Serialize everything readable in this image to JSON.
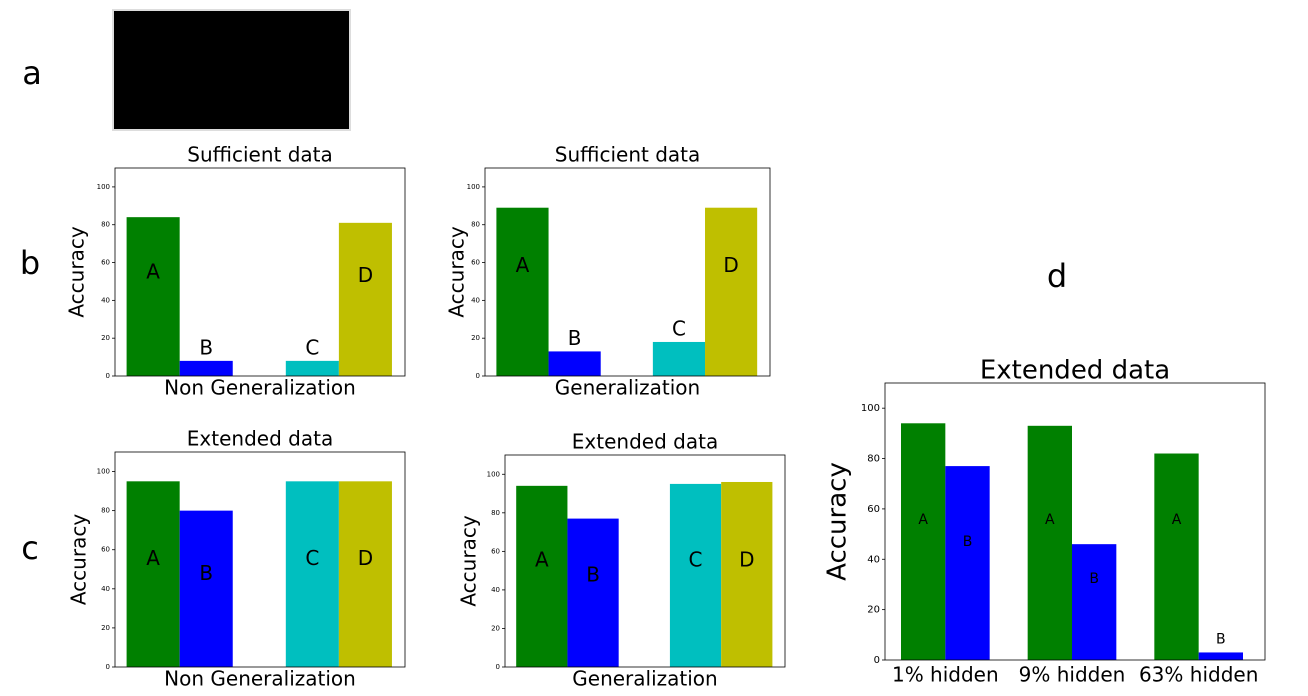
{
  "panel_labels": [
    "a",
    "b",
    "c",
    "d"
  ],
  "chart_data": [
    {
      "type": "bar",
      "title": "Sufficient data",
      "ylabel": "Accuracy",
      "xlabel": "Non Generalization",
      "categories": [
        "A",
        "B",
        "C",
        "D"
      ],
      "values": [
        84,
        8,
        8,
        81
      ],
      "colors": [
        "#008000",
        "#0000ff",
        "#00bfbf",
        "#bfbf00"
      ],
      "ylim": [
        0,
        110
      ],
      "yticks": [
        0,
        20,
        40,
        60,
        80,
        100
      ]
    },
    {
      "type": "bar",
      "title": "Sufficient data",
      "ylabel": "Accuracy",
      "xlabel": "Generalization",
      "categories": [
        "A",
        "B",
        "C",
        "D"
      ],
      "values": [
        89,
        13,
        18,
        89
      ],
      "colors": [
        "#008000",
        "#0000ff",
        "#00bfbf",
        "#bfbf00"
      ],
      "ylim": [
        0,
        110
      ],
      "yticks": [
        0,
        20,
        40,
        60,
        80,
        100
      ]
    },
    {
      "type": "bar",
      "title": "Extended data",
      "ylabel": "Accuracy",
      "xlabel": "Non Generalization",
      "categories": [
        "A",
        "B",
        "C",
        "D"
      ],
      "values": [
        95,
        80,
        95,
        95
      ],
      "colors": [
        "#008000",
        "#0000ff",
        "#00bfbf",
        "#bfbf00"
      ],
      "ylim": [
        0,
        110
      ],
      "yticks": [
        0,
        20,
        40,
        60,
        80,
        100
      ]
    },
    {
      "type": "bar",
      "title": "Extended data",
      "ylabel": "Accuracy",
      "xlabel": "Generalization",
      "categories": [
        "A",
        "B",
        "C",
        "D"
      ],
      "values": [
        94,
        77,
        95,
        96
      ],
      "colors": [
        "#008000",
        "#0000ff",
        "#00bfbf",
        "#bfbf00"
      ],
      "ylim": [
        0,
        110
      ],
      "yticks": [
        0,
        20,
        40,
        60,
        80,
        100
      ]
    },
    {
      "type": "grouped_bar",
      "title": "Extended data",
      "ylabel": "Accuracy",
      "categories": [
        "1% hidden",
        "9% hidden",
        "63% hidden"
      ],
      "series": [
        {
          "name": "A",
          "color": "#008000",
          "values": [
            94,
            93,
            82
          ]
        },
        {
          "name": "B",
          "color": "#0000ff",
          "values": [
            77,
            46,
            3
          ]
        }
      ],
      "ylim": [
        0,
        110
      ],
      "yticks": [
        0,
        20,
        40,
        60,
        80,
        100
      ]
    }
  ]
}
